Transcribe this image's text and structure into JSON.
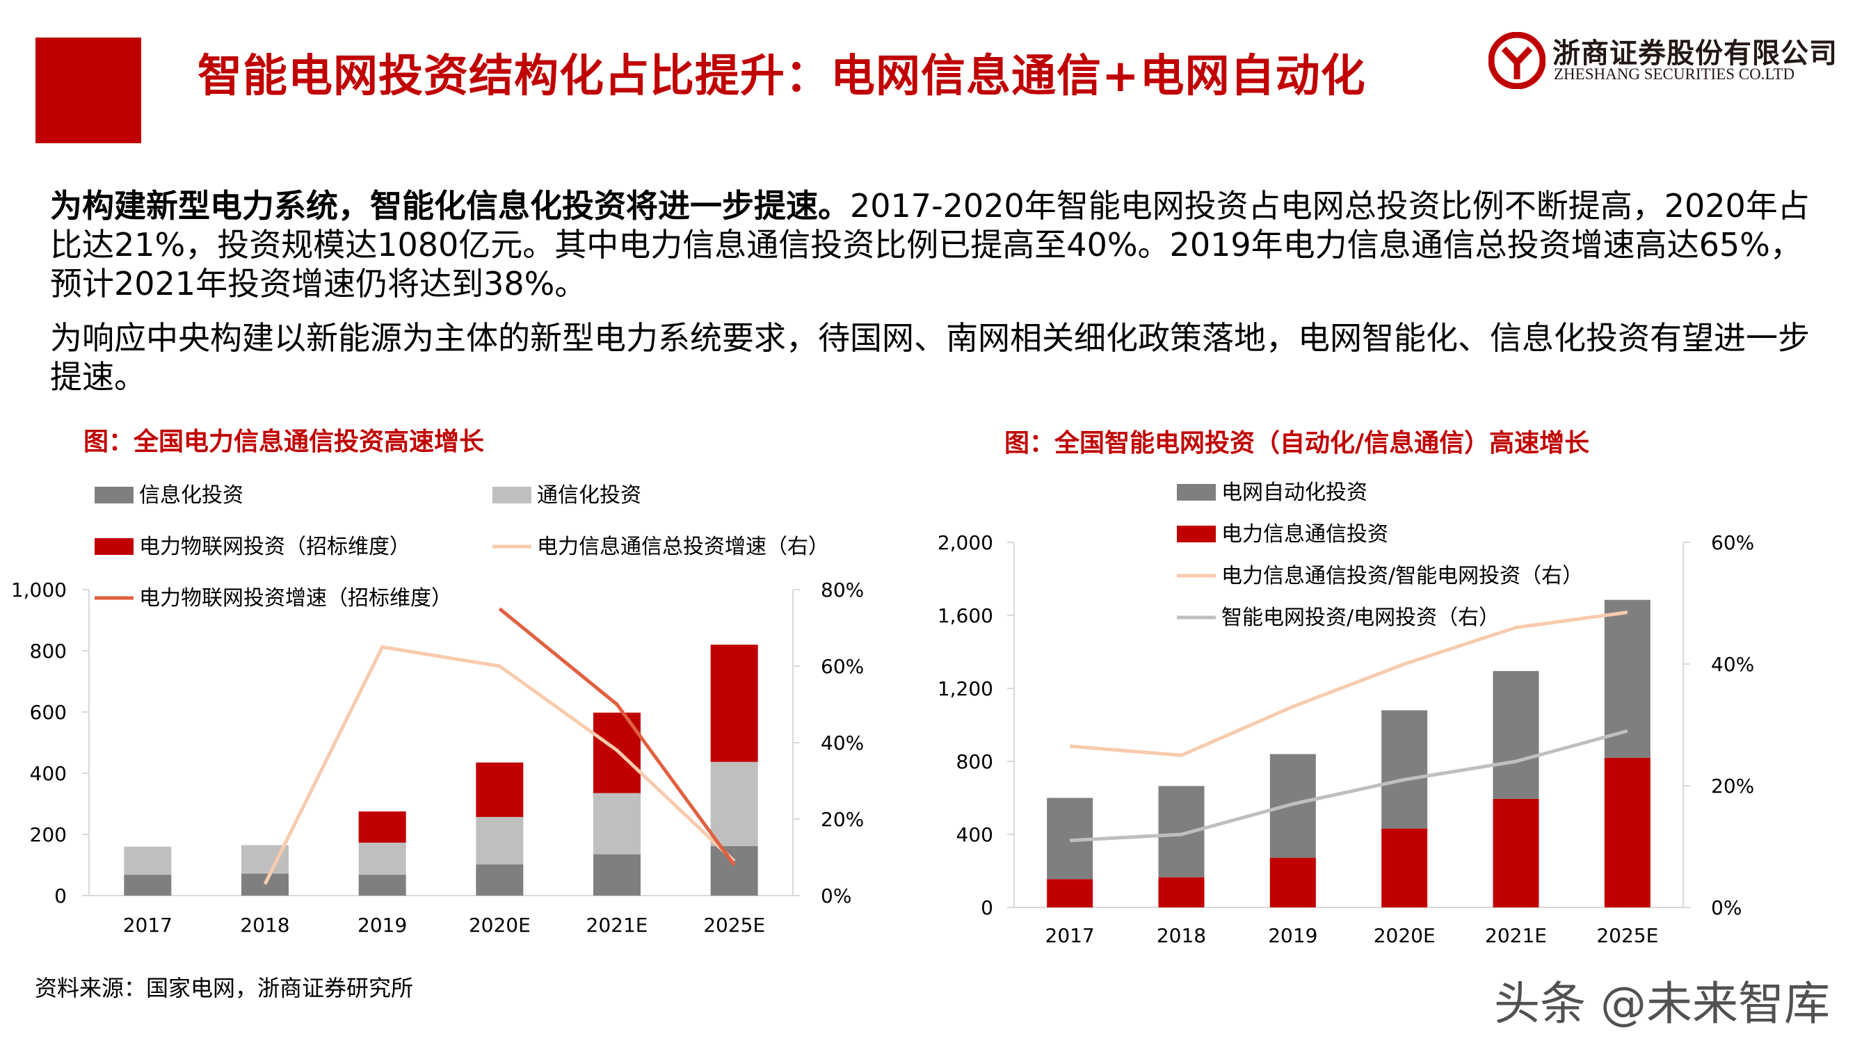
{
  "header": {
    "title": "智能电网投资结构化占比提升：电网信息通信+电网自动化",
    "logo_cn": "浙商证券股份有限公司",
    "logo_en": "ZHESHANG SECURITIES CO.LTD",
    "accent_color": "#c00000"
  },
  "body": {
    "para1_bold": "为构建新型电力系统，智能化信息化投资将进一步提速。",
    "para1_text": "2017-2020年智能电网投资占电网总投资比例不断提高，2020年占比达21%，投资规模达1080亿元。其中电力信息通信投资比例已提高至40%。2019年电力信息通信总投资增速高达65%，预计2021年投资增速仍将达到38%。",
    "para2_text": "为响应中央构建以新能源为主体的新型电力系统要求，待国网、南网相关细化政策落地，电网智能化、信息化投资有望进一步提速。"
  },
  "chart_titles": {
    "left": "图：全国电力信息通信投资高速增长",
    "right": "图：全国智能电网投资（自动化/信息通信）高速增长"
  },
  "source": "资料来源：国家电网，浙商证券研究所",
  "watermark": "头条 @未来智库",
  "chart_data": [
    {
      "type": "bar",
      "stacked": true,
      "categories": [
        "2017",
        "2018",
        "2019",
        "2020E",
        "2021E",
        "2025E"
      ],
      "series": [
        {
          "name": "信息化投资",
          "color": "#7f7f7f",
          "axis": "left",
          "values": [
            68,
            72,
            68,
            102,
            135,
            162
          ]
        },
        {
          "name": "通信化投资",
          "color": "#bfbfbf",
          "axis": "left",
          "values": [
            92,
            93,
            105,
            155,
            200,
            275
          ]
        },
        {
          "name": "电力物联网投资（招标维度）",
          "color": "#c00000",
          "axis": "left",
          "values": [
            0,
            0,
            102,
            178,
            263,
            383
          ]
        },
        {
          "name": "电力信息通信总投资增速（右）",
          "type": "line",
          "color": "#f8cbad",
          "axis": "right",
          "values": [
            null,
            0.03,
            0.65,
            0.6,
            0.38,
            0.09
          ]
        },
        {
          "name": "电力物联网投资增速（招标维度）",
          "type": "line",
          "color": "#e06040",
          "axis": "right",
          "values": [
            null,
            null,
            null,
            0.75,
            0.5,
            0.08
          ]
        }
      ],
      "ylim": [
        0,
        1000
      ],
      "yticks": [
        "0",
        "200",
        "400",
        "600",
        "800",
        "1,000"
      ],
      "y2lim": [
        0,
        0.8
      ],
      "y2ticks": [
        "0%",
        "20%",
        "40%",
        "60%",
        "80%"
      ]
    },
    {
      "type": "bar",
      "stacked": true,
      "categories": [
        "2017",
        "2018",
        "2019",
        "2020E",
        "2021E",
        "2025E"
      ],
      "series": [
        {
          "name": "电力信息通信投资",
          "color": "#c00000",
          "axis": "left",
          "values": [
            155,
            165,
            272,
            432,
            595,
            820
          ]
        },
        {
          "name": "电网自动化投资",
          "color": "#7f7f7f",
          "axis": "left",
          "values": [
            445,
            500,
            568,
            648,
            700,
            865
          ]
        },
        {
          "name": "电力信息通信投资/智能电网投资（右）",
          "type": "line",
          "color": "#f8cbad",
          "axis": "right",
          "values": [
            0.265,
            0.25,
            0.33,
            0.4,
            0.46,
            0.485
          ]
        },
        {
          "name": "智能电网投资/电网投资（右）",
          "type": "line",
          "color": "#bfbfbf",
          "axis": "right",
          "values": [
            0.11,
            0.12,
            0.17,
            0.21,
            0.24,
            0.29
          ]
        }
      ],
      "ylim": [
        0,
        2000
      ],
      "yticks": [
        "0",
        "400",
        "800",
        "1,200",
        "1,600",
        "2,000"
      ],
      "y2lim": [
        0,
        0.6
      ],
      "y2ticks": [
        "0%",
        "20%",
        "40%",
        "60%"
      ]
    }
  ]
}
